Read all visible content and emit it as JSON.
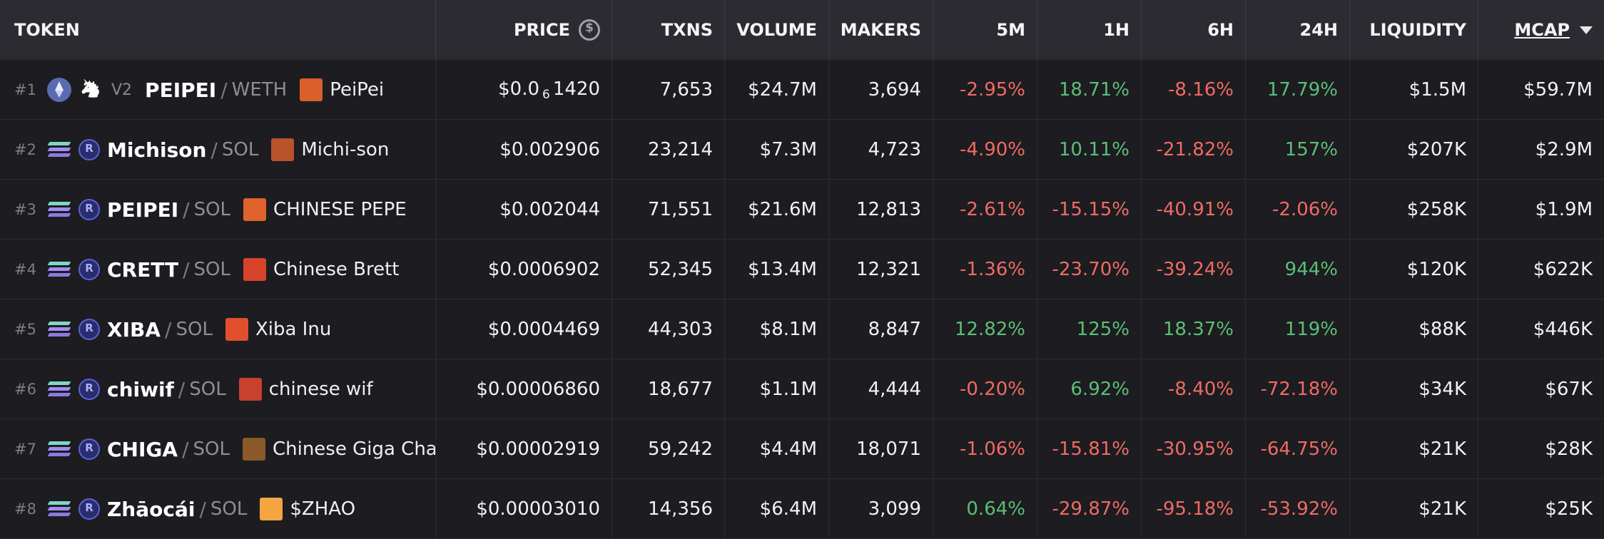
{
  "header": {
    "token": "TOKEN",
    "price": "PRICE",
    "txns": "TXNS",
    "volume": "VOLUME",
    "makers": "MAKERS",
    "m5": "5M",
    "h1": "1H",
    "h6": "6H",
    "h24": "24H",
    "liquidity": "LIQUIDITY",
    "mcap": "MCAP",
    "icons": {
      "price": "dollar-circle-icon",
      "sort": "sort-desc-icon"
    }
  },
  "colors": {
    "negative": "#ef6b63",
    "positive": "#5bbf75",
    "background": "#1c1c21",
    "header_bg": "#2b2b31"
  },
  "rows": [
    {
      "rank": "#1",
      "chain": "ethereum",
      "dex": "uniswap",
      "version": "V2",
      "symbol": "PEIPEI",
      "quote": "WETH",
      "avatar_color": "#d9602a",
      "name": "PeiPei",
      "price_prefix": "$0.0",
      "price_zeros": "6",
      "price_suffix": "1420",
      "txns": "7,653",
      "volume": "$24.7M",
      "makers": "3,694",
      "m5": "-2.95%",
      "h1": "18.71%",
      "h6": "-8.16%",
      "h24": "17.79%",
      "liquidity": "$1.5M",
      "mcap": "$59.7M"
    },
    {
      "rank": "#2",
      "chain": "solana",
      "dex": "raydium",
      "version": "",
      "symbol": "Michison",
      "quote": "SOL",
      "avatar_color": "#b8532a",
      "name": "Michi-son",
      "price_prefix": "$0.002906",
      "price_zeros": "",
      "price_suffix": "",
      "txns": "23,214",
      "volume": "$7.3M",
      "makers": "4,723",
      "m5": "-4.90%",
      "h1": "10.11%",
      "h6": "-21.82%",
      "h24": "157%",
      "liquidity": "$207K",
      "mcap": "$2.9M"
    },
    {
      "rank": "#3",
      "chain": "solana",
      "dex": "raydium",
      "version": "",
      "symbol": "PEIPEI",
      "quote": "SOL",
      "avatar_color": "#e0622c",
      "name": "CHINESE PEPE",
      "price_prefix": "$0.002044",
      "price_zeros": "",
      "price_suffix": "",
      "txns": "71,551",
      "volume": "$21.6M",
      "makers": "12,813",
      "m5": "-2.61%",
      "h1": "-15.15%",
      "h6": "-40.91%",
      "h24": "-2.06%",
      "liquidity": "$258K",
      "mcap": "$1.9M"
    },
    {
      "rank": "#4",
      "chain": "solana",
      "dex": "raydium",
      "version": "",
      "symbol": "CRETT",
      "quote": "SOL",
      "avatar_color": "#d7442a",
      "name": "Chinese Brett",
      "price_prefix": "$0.0006902",
      "price_zeros": "",
      "price_suffix": "",
      "txns": "52,345",
      "volume": "$13.4M",
      "makers": "12,321",
      "m5": "-1.36%",
      "h1": "-23.70%",
      "h6": "-39.24%",
      "h24": "944%",
      "liquidity": "$120K",
      "mcap": "$622K"
    },
    {
      "rank": "#5",
      "chain": "solana",
      "dex": "raydium",
      "version": "",
      "symbol": "XIBA",
      "quote": "SOL",
      "avatar_color": "#e24f2c",
      "name": "Xiba Inu",
      "price_prefix": "$0.0004469",
      "price_zeros": "",
      "price_suffix": "",
      "txns": "44,303",
      "volume": "$8.1M",
      "makers": "8,847",
      "m5": "12.82%",
      "h1": "125%",
      "h6": "18.37%",
      "h24": "119%",
      "liquidity": "$88K",
      "mcap": "$446K"
    },
    {
      "rank": "#6",
      "chain": "solana",
      "dex": "raydium",
      "version": "",
      "symbol": "chiwif",
      "quote": "SOL",
      "avatar_color": "#c8402e",
      "name": "chinese wif",
      "price_prefix": "$0.00006860",
      "price_zeros": "",
      "price_suffix": "",
      "txns": "18,677",
      "volume": "$1.1M",
      "makers": "4,444",
      "m5": "-0.20%",
      "h1": "6.92%",
      "h6": "-8.40%",
      "h24": "-72.18%",
      "liquidity": "$34K",
      "mcap": "$67K"
    },
    {
      "rank": "#7",
      "chain": "solana",
      "dex": "raydium",
      "version": "",
      "symbol": "CHIGA",
      "quote": "SOL",
      "avatar_color": "#8a5a2a",
      "name": "Chinese Giga Chad",
      "price_prefix": "$0.00002919",
      "price_zeros": "",
      "price_suffix": "",
      "txns": "59,242",
      "volume": "$4.4M",
      "makers": "18,071",
      "m5": "-1.06%",
      "h1": "-15.81%",
      "h6": "-30.95%",
      "h24": "-64.75%",
      "liquidity": "$21K",
      "mcap": "$28K"
    },
    {
      "rank": "#8",
      "chain": "solana",
      "dex": "raydium",
      "version": "",
      "symbol": "Zhāocái",
      "quote": "SOL",
      "avatar_color": "#f2a541",
      "name": "$ZHAO",
      "price_prefix": "$0.00003010",
      "price_zeros": "",
      "price_suffix": "",
      "txns": "14,356",
      "volume": "$6.4M",
      "makers": "3,099",
      "m5": "0.64%",
      "h1": "-29.87%",
      "h6": "-95.18%",
      "h24": "-53.92%",
      "liquidity": "$21K",
      "mcap": "$25K"
    }
  ]
}
